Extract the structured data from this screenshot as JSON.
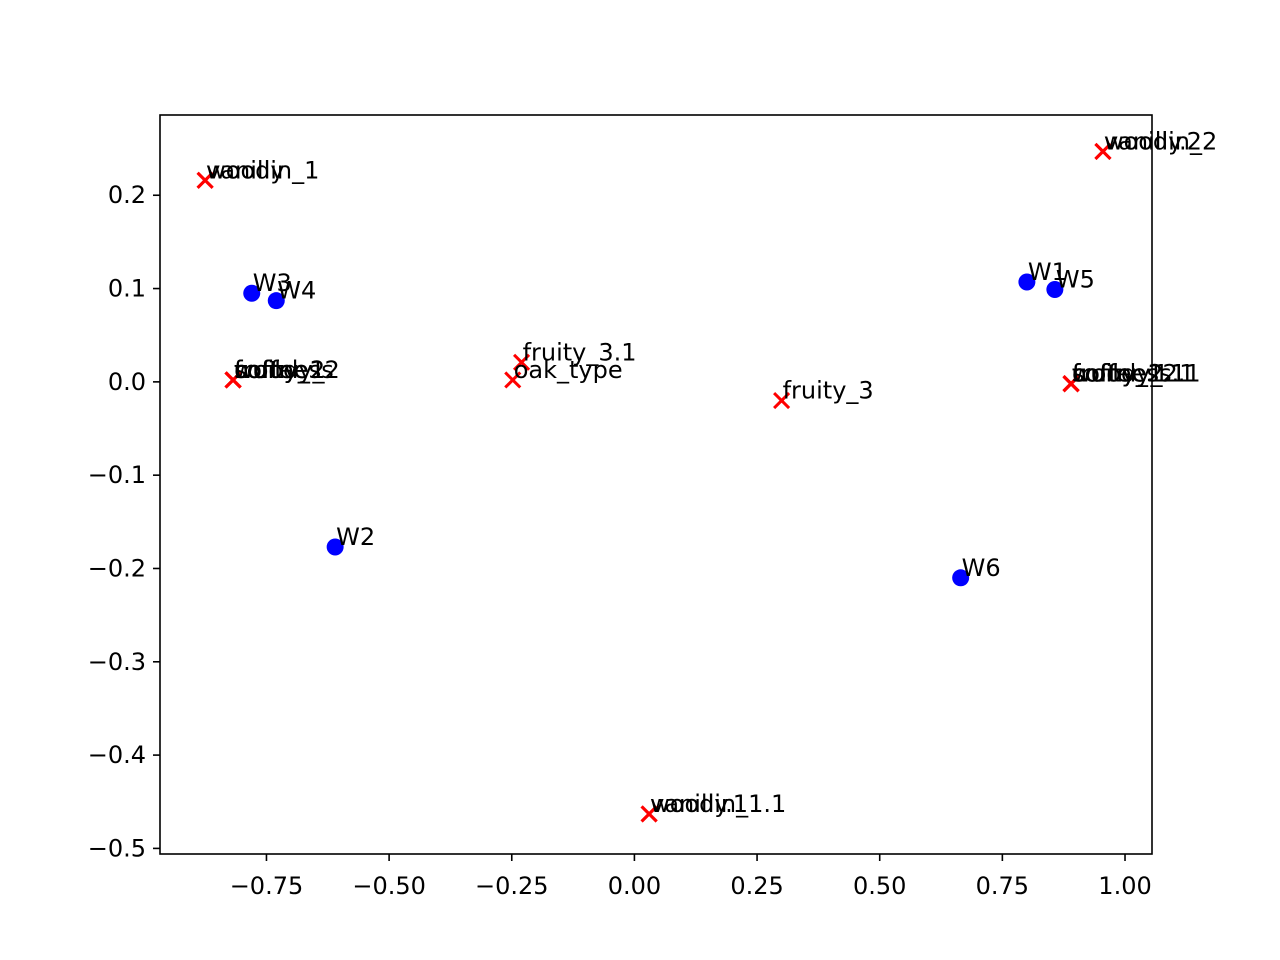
{
  "chart_data": {
    "type": "scatter",
    "title": "",
    "xlabel": "",
    "ylabel": "",
    "xlim": [
      -0.967,
      1.055
    ],
    "ylim": [
      -0.506,
      0.286
    ],
    "grid": false,
    "legend": "none",
    "xticks": [
      {
        "value": -0.75,
        "label": "−0.75"
      },
      {
        "value": -0.5,
        "label": "−0.50"
      },
      {
        "value": -0.25,
        "label": "−0.25"
      },
      {
        "value": 0.0,
        "label": "0.00"
      },
      {
        "value": 0.25,
        "label": "0.25"
      },
      {
        "value": 0.5,
        "label": "0.50"
      },
      {
        "value": 0.75,
        "label": "0.75"
      },
      {
        "value": 1.0,
        "label": "1.00"
      }
    ],
    "yticks": [
      {
        "value": 0.2,
        "label": "0.2"
      },
      {
        "value": 0.1,
        "label": "0.1"
      },
      {
        "value": 0.0,
        "label": "0.0"
      },
      {
        "value": -0.1,
        "label": "−0.1"
      },
      {
        "value": -0.2,
        "label": "−0.2"
      },
      {
        "value": -0.3,
        "label": "−0.3"
      },
      {
        "value": -0.4,
        "label": "−0.4"
      },
      {
        "value": -0.5,
        "label": "−0.5"
      }
    ],
    "series": [
      {
        "marker": "circle",
        "color": "#0000ff",
        "points": [
          {
            "label": "W1",
            "x": 0.8,
            "y": 0.107
          },
          {
            "label": "W2",
            "x": -0.61,
            "y": -0.177
          },
          {
            "label": "W3",
            "x": -0.78,
            "y": 0.095
          },
          {
            "label": "W4",
            "x": -0.73,
            "y": 0.087
          },
          {
            "label": "W5",
            "x": 0.857,
            "y": 0.099
          },
          {
            "label": "W6",
            "x": 0.665,
            "y": -0.21
          }
        ]
      },
      {
        "marker": "x",
        "color": "#ff0000",
        "points": [
          {
            "label": "vanillin_1",
            "x": -0.875,
            "y": 0.216
          },
          {
            "label": "woody",
            "x": -0.875,
            "y": 0.216
          },
          {
            "label": "fruity_2",
            "x": -0.818,
            "y": 0.002
          },
          {
            "label": "softness",
            "x": -0.818,
            "y": 0.002
          },
          {
            "label": "fruity_1",
            "x": -0.818,
            "y": 0.002
          },
          {
            "label": "coffee",
            "x": -0.818,
            "y": 0.002
          },
          {
            "label": "woody_2",
            "x": -0.818,
            "y": 0.002
          },
          {
            "label": "fruity_3.1",
            "x": -0.23,
            "y": 0.021
          },
          {
            "label": "oak_type",
            "x": -0.248,
            "y": 0.002
          },
          {
            "label": "fruity_3",
            "x": 0.3,
            "y": -0.02
          },
          {
            "label": "vanillin_2",
            "x": 0.955,
            "y": 0.247
          },
          {
            "label": "woody.2",
            "x": 0.955,
            "y": 0.247
          },
          {
            "label": "fruity_2.1",
            "x": 0.89,
            "y": -0.002
          },
          {
            "label": "softness.1",
            "x": 0.89,
            "y": -0.002
          },
          {
            "label": "fruity_1.1",
            "x": 0.89,
            "y": -0.002
          },
          {
            "label": "coffee.1",
            "x": 0.89,
            "y": -0.002
          },
          {
            "label": "woody_2.1",
            "x": 0.89,
            "y": -0.002
          },
          {
            "label": "vanillin_1.1",
            "x": 0.03,
            "y": -0.463
          },
          {
            "label": "woody.1",
            "x": 0.03,
            "y": -0.463
          }
        ]
      }
    ]
  }
}
